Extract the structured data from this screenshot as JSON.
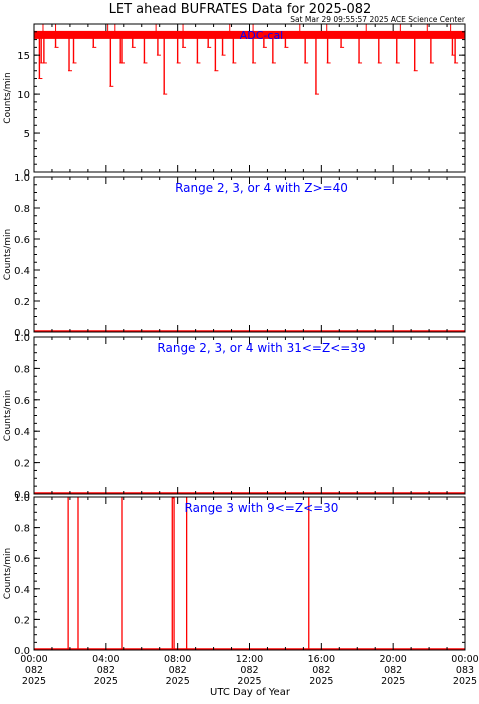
{
  "title": "LET ahead BUFRATES Data for 2025-082",
  "timestamp": "Sat Mar 29 09:55:57 2025 ACE Science Center",
  "xlabel": "UTC Day of Year",
  "colors": {
    "data": "#ff0000",
    "label": "#0000ff",
    "axis": "#000000"
  },
  "x_ticks": [
    {
      "time": "00:00",
      "doy": "082",
      "year": "2025"
    },
    {
      "time": "04:00",
      "doy": "082",
      "year": "2025"
    },
    {
      "time": "08:00",
      "doy": "082",
      "year": "2025"
    },
    {
      "time": "12:00",
      "doy": "082",
      "year": "2025"
    },
    {
      "time": "16:00",
      "doy": "082",
      "year": "2025"
    },
    {
      "time": "20:00",
      "doy": "082",
      "year": "2025"
    },
    {
      "time": "00:00",
      "doy": "083",
      "year": "2025"
    }
  ],
  "chart_data": [
    {
      "type": "line",
      "label": "ADC-cal",
      "ylabel": "Counts/min",
      "xlim": [
        0,
        24
      ],
      "ylim": [
        0,
        19
      ],
      "yticks": [
        "0",
        "5",
        "10",
        "15"
      ],
      "ytick_values": [
        0,
        5,
        10,
        15
      ],
      "baseline": 17.6,
      "dips": [
        {
          "x": 0.3,
          "y": 12
        },
        {
          "x": 0.4,
          "y": 14
        },
        {
          "x": 0.55,
          "y": 14
        },
        {
          "x": 1.2,
          "y": 16
        },
        {
          "x": 1.95,
          "y": 13
        },
        {
          "x": 2.2,
          "y": 14
        },
        {
          "x": 3.3,
          "y": 16
        },
        {
          "x": 4.25,
          "y": 11
        },
        {
          "x": 4.8,
          "y": 14
        },
        {
          "x": 4.9,
          "y": 14
        },
        {
          "x": 5.5,
          "y": 16
        },
        {
          "x": 6.15,
          "y": 14
        },
        {
          "x": 6.9,
          "y": 15
        },
        {
          "x": 7.25,
          "y": 10
        },
        {
          "x": 8.0,
          "y": 14
        },
        {
          "x": 8.3,
          "y": 16
        },
        {
          "x": 9.1,
          "y": 14
        },
        {
          "x": 9.7,
          "y": 16
        },
        {
          "x": 10.1,
          "y": 13
        },
        {
          "x": 10.5,
          "y": 15
        },
        {
          "x": 11.1,
          "y": 14
        },
        {
          "x": 12.2,
          "y": 14
        },
        {
          "x": 12.8,
          "y": 16
        },
        {
          "x": 13.3,
          "y": 14
        },
        {
          "x": 14.0,
          "y": 16
        },
        {
          "x": 15.1,
          "y": 14
        },
        {
          "x": 15.7,
          "y": 10
        },
        {
          "x": 16.35,
          "y": 14
        },
        {
          "x": 17.1,
          "y": 16
        },
        {
          "x": 18.1,
          "y": 14
        },
        {
          "x": 19.2,
          "y": 14
        },
        {
          "x": 20.2,
          "y": 14
        },
        {
          "x": 21.2,
          "y": 13
        },
        {
          "x": 22.1,
          "y": 14
        },
        {
          "x": 23.3,
          "y": 15
        },
        {
          "x": 23.45,
          "y": 14
        }
      ],
      "spikes": [
        {
          "x": 0.5
        },
        {
          "x": 1.2
        },
        {
          "x": 4.1
        },
        {
          "x": 4.5
        },
        {
          "x": 6.8
        },
        {
          "x": 8.3
        },
        {
          "x": 10.9
        },
        {
          "x": 12.2
        },
        {
          "x": 14.8
        },
        {
          "x": 16.3
        },
        {
          "x": 18.5
        },
        {
          "x": 20.4
        },
        {
          "x": 21.9
        },
        {
          "x": 23.2
        }
      ]
    },
    {
      "type": "line",
      "label": "Range 2, 3, or 4 with Z>=40",
      "ylabel": "Counts/min",
      "xlim": [
        0,
        24
      ],
      "ylim": [
        0,
        1
      ],
      "yticks": [
        "0.0",
        "0.2",
        "0.4",
        "0.6",
        "0.8",
        "1.0"
      ],
      "ytick_values": [
        0,
        0.2,
        0.4,
        0.6,
        0.8,
        1.0
      ],
      "baseline": 0,
      "spikes": []
    },
    {
      "type": "line",
      "label": "Range 2, 3, or 4 with 31<=Z<=39",
      "ylabel": "Counts/min",
      "xlim": [
        0,
        24
      ],
      "ylim": [
        0,
        1
      ],
      "yticks": [
        "0.0",
        "0.2",
        "0.4",
        "0.6",
        "0.8",
        "1.0"
      ],
      "ytick_values": [
        0,
        0.2,
        0.4,
        0.6,
        0.8,
        1.0
      ],
      "baseline": 0,
      "spikes": []
    },
    {
      "type": "line",
      "label": "Range 3 with 9<=Z<=30",
      "ylabel": "Counts/min",
      "xlim": [
        0,
        24
      ],
      "ylim": [
        0,
        1
      ],
      "yticks": [
        "0.0",
        "0.2",
        "0.4",
        "0.6",
        "0.8",
        "1.0"
      ],
      "ytick_values": [
        0,
        0.2,
        0.4,
        0.6,
        0.8,
        1.0
      ],
      "baseline": 0,
      "spikes": [
        {
          "x": 1.9,
          "y": 1
        },
        {
          "x": 2.45,
          "y": 1
        },
        {
          "x": 4.9,
          "y": 1
        },
        {
          "x": 7.7,
          "y": 1
        },
        {
          "x": 7.8,
          "y": 1
        },
        {
          "x": 8.5,
          "y": 1
        },
        {
          "x": 15.3,
          "y": 1
        }
      ]
    }
  ]
}
